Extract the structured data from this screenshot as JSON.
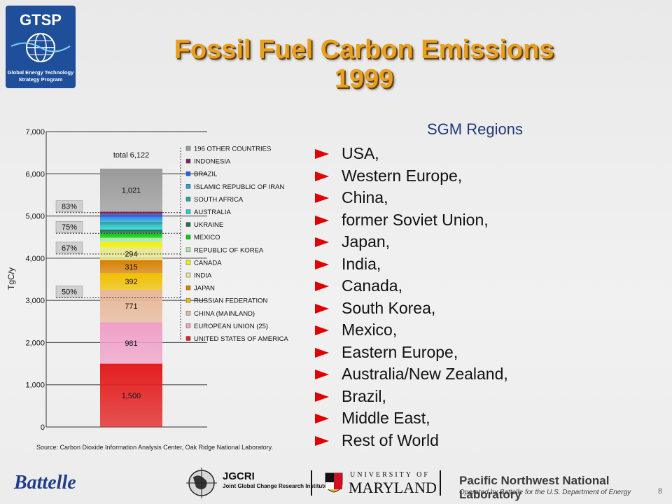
{
  "logo": {
    "name": "GTSP",
    "subtitle_line1": "Global Energy Technology",
    "subtitle_line2": "Strategy Program"
  },
  "title": {
    "line1": "Fossil Fuel Carbon Emissions",
    "line2": "1999"
  },
  "chart_data": {
    "type": "bar",
    "stacked": true,
    "ylabel": "TgC/y",
    "ylim": [
      0,
      7000
    ],
    "yticks": [
      "0",
      "1,000",
      "2,000",
      "3,000",
      "4,000",
      "5,000",
      "6,000",
      "7,000"
    ],
    "ytick_values": [
      0,
      1000,
      2000,
      3000,
      4000,
      5000,
      6000,
      7000
    ],
    "grid": true,
    "total_label": "total 6,122",
    "total": 6122,
    "segments": [
      {
        "name": "UNITED STATES OF AMERICA",
        "value": 1500,
        "label": "1,500",
        "color": "#e31e1e"
      },
      {
        "name": "EUROPEAN UNION (25)",
        "value": 981,
        "label": "981",
        "color": "#f0a0c8"
      },
      {
        "name": "CHINA (MAINLAND)",
        "value": 771,
        "label": "771",
        "color": "#e8b898"
      },
      {
        "name": "RUSSIAN FEDERATION",
        "value": 392,
        "label": "392",
        "color": "#f0c000"
      },
      {
        "name": "JAPAN",
        "value": 315,
        "label": "315",
        "color": "#d88000"
      },
      {
        "name": "INDIA",
        "value": 294,
        "label": "294",
        "color": "#e8e890"
      },
      {
        "name": "CANADA",
        "value": 125,
        "label": "",
        "color": "#f4f000"
      },
      {
        "name": "REPUBLIC OF KOREA",
        "value": 105,
        "label": "",
        "color": "#a8e8a8"
      },
      {
        "name": "MEXICO",
        "value": 100,
        "label": "",
        "color": "#00d000"
      },
      {
        "name": "UKRAINE",
        "value": 95,
        "label": "",
        "color": "#207050"
      },
      {
        "name": "AUSTRALIA",
        "value": 95,
        "label": "",
        "color": "#20d0d0"
      },
      {
        "name": "SOUTH AFRICA",
        "value": 90,
        "label": "",
        "color": "#20a0a0"
      },
      {
        "name": "ISLAMIC REPUBLIC OF IRAN",
        "value": 85,
        "label": "",
        "color": "#20a0e0"
      },
      {
        "name": "BRAZIL",
        "value": 85,
        "label": "",
        "color": "#2060e0"
      },
      {
        "name": "INDONESIA",
        "value": 68,
        "label": "",
        "color": "#802060"
      },
      {
        "name": "196 OTHER COUNTRIES",
        "value": 1021,
        "label": "1,021",
        "color": "#9a9a9a"
      }
    ],
    "legend_order": [
      "196 OTHER COUNTRIES",
      "INDONESIA",
      "BRAZIL",
      "ISLAMIC REPUBLIC OF IRAN",
      "SOUTH AFRICA",
      "AUSTRALIA",
      "UKRAINE",
      "MEXICO",
      "REPUBLIC OF KOREA",
      "CANADA",
      "INDIA",
      "JAPAN",
      "RUSSIAN FEDERATION",
      "CHINA (MAINLAND)",
      "EUROPEAN UNION (25)",
      "UNITED STATES OF AMERICA"
    ],
    "legend_placement": "right",
    "percent_markers": [
      {
        "label": "83%",
        "value": 5081
      },
      {
        "label": "75%",
        "value": 4591
      },
      {
        "label": "67%",
        "value": 4100
      },
      {
        "label": "50%",
        "value": 3061
      }
    ]
  },
  "source": "Source:  Carbon Dioxide Information Analysis Center, Oak Ridge National Laboratory.",
  "regions": {
    "title": "SGM Regions",
    "items": [
      "USA,",
      "Western Europe,",
      "China,",
      "former Soviet Union,",
      "Japan,",
      "India,",
      "Canada,",
      "South Korea,",
      "Mexico,",
      "Eastern Europe,",
      "Australia/New Zealand,",
      "Brazil,",
      "Middle East,",
      "Rest of World"
    ],
    "bullet_color": "#e00000"
  },
  "footer": {
    "battelle": "Battelle",
    "jgcri": "JGCRI",
    "jgcri_sub": "Joint Global Change Research Institute",
    "umd_top": "UNIVERSITY OF",
    "umd_bottom": "MARYLAND",
    "pnnl": "Pacific Northwest National Laboratory",
    "pnnl_sub": "Operated by Battelle for the U.S. Department of Energy",
    "page_number": "8"
  }
}
